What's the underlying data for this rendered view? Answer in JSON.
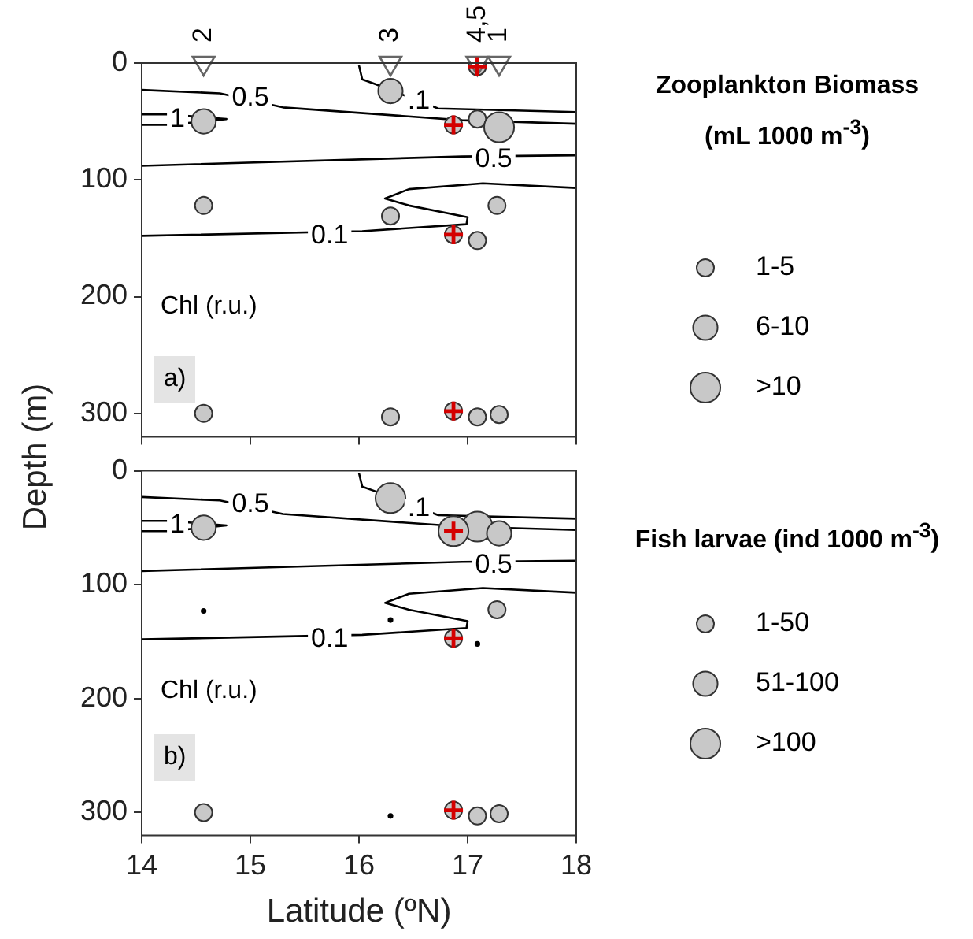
{
  "chart_data": [
    {
      "type": "bubble",
      "ylabel": "Depth (m)",
      "legend_title": "Zooplankton Biomass (mL 1000 m$^{-3}$)",
      "size_legend": [
        {
          "value": 1,
          "label": "1-5"
        },
        {
          "value": 2,
          "label": "6-10"
        },
        {
          "value": 3,
          "label": ">10"
        }
      ],
      "xlim": [
        14,
        18
      ],
      "xticks": [
        14,
        15,
        16,
        17,
        18
      ],
      "ylim": [
        320,
        0
      ],
      "yticks": [
        0,
        100,
        200,
        300
      ],
      "tick_labels": "y",
      "series": [
        {
          "type": "line",
          "color": "#000000",
          "x": [
            14,
            14.72,
            15.3,
            16.95,
            18
          ],
          "values": [
            23,
            26,
            38,
            49,
            52
          ]
        },
        {
          "type": "line",
          "color": "#000000",
          "x": [
            14,
            14.25,
            14.78,
            14.25,
            14
          ],
          "values": [
            44,
            44,
            48,
            53,
            53
          ]
        },
        {
          "type": "line",
          "color": "#000000",
          "x": [
            16,
            16.03,
            16.15,
            16.73,
            18
          ],
          "values": [
            2,
            14,
            18,
            39,
            42
          ]
        },
        {
          "type": "line",
          "color": "#000000",
          "x": [
            14,
            16.95,
            18
          ],
          "values": [
            88,
            80,
            79
          ]
        },
        {
          "type": "line",
          "color": "#000000",
          "x": [
            18,
            17.14,
            16.46,
            16.24,
            16.46,
            17,
            16.99,
            16.03,
            14
          ],
          "values": [
            107,
            103,
            108,
            116,
            122,
            132,
            138,
            144,
            148
          ]
        },
        {
          "type": "bubble",
          "color": "#c8c8c8",
          "x": [
            14.57,
            14.57,
            14.57,
            16.29,
            16.29,
            16.29,
            17.09,
            17.29,
            17.27,
            17.09,
            17.09,
            17.29
          ],
          "values": [
            50,
            122,
            300,
            24,
            131,
            303,
            48,
            55,
            122,
            152,
            303,
            301
          ],
          "sizes": [
            2,
            1,
            1,
            2,
            1,
            1,
            1,
            3,
            1,
            1,
            1,
            1
          ]
        },
        {
          "type": "bubble",
          "color": "#c8c8c8",
          "x": [
            17.09,
            16.87,
            16.87,
            16.87
          ],
          "values": [
            3,
            53,
            147,
            298
          ],
          "sizes": [
            1,
            1,
            1,
            1
          ]
        },
        {
          "type": "scatter",
          "color": "#666666",
          "marker": "triangle",
          "x": [
            14.57,
            16.29,
            17.09,
            17.29
          ],
          "values": [
            0,
            0,
            0,
            0
          ]
        },
        {
          "type": "scatter",
          "color": "#d40000",
          "marker": "cross",
          "x": [
            17.09,
            16.87,
            16.87,
            16.87
          ],
          "values": [
            3,
            53,
            147,
            298
          ]
        }
      ],
      "annotations": [
        {
          "text": "0.5",
          "x": 15.0,
          "y": 30
        },
        {
          "text": "1",
          "x": 14.33,
          "y": 48
        },
        {
          "text": ".1",
          "x": 16.55,
          "y": 33
        },
        {
          "text": "0.5",
          "x": 17.24,
          "y": 83
        },
        {
          "text": "0.1",
          "x": 15.73,
          "y": 148
        },
        {
          "text": "2",
          "x": 14.57,
          "y": 0
        },
        {
          "text": "3",
          "x": 16.29,
          "y": 0
        },
        {
          "text": "4,5",
          "x": 17.09,
          "y": 0
        },
        {
          "text": "1",
          "x": 17.29,
          "y": 0
        },
        "Chl (r.u.)",
        "a)"
      ]
    },
    {
      "type": "bubble",
      "xlabel": "Latitude (ºN)",
      "legend_title": "Fish larvae (ind 1000 m$^{-3}$)",
      "size_legend": [
        {
          "value": 1,
          "label": "1-50"
        },
        {
          "value": 2,
          "label": "51-100"
        },
        {
          "value": 3,
          "label": ">100"
        }
      ],
      "xlim": [
        14,
        18
      ],
      "xticks": [
        14,
        15,
        16,
        17,
        18
      ],
      "ylim": [
        320,
        0
      ],
      "yticks": [
        0,
        100,
        200,
        300
      ],
      "series": [
        {
          "type": "line",
          "color": "#000000",
          "x": [
            14,
            14.72,
            15.3,
            16.95,
            18
          ],
          "values": [
            23,
            26,
            38,
            49,
            52
          ]
        },
        {
          "type": "line",
          "color": "#000000",
          "x": [
            14,
            14.25,
            14.78,
            14.25,
            14
          ],
          "values": [
            44,
            44,
            48,
            53,
            53
          ]
        },
        {
          "type": "line",
          "color": "#000000",
          "x": [
            16,
            16.03,
            16.15,
            16.73,
            18
          ],
          "values": [
            2,
            14,
            18,
            39,
            42
          ]
        },
        {
          "type": "line",
          "color": "#000000",
          "x": [
            14,
            16.95,
            18
          ],
          "values": [
            88,
            80,
            79
          ]
        },
        {
          "type": "line",
          "color": "#000000",
          "x": [
            18,
            17.14,
            16.46,
            16.24,
            16.46,
            17,
            16.99,
            16.03,
            14
          ],
          "values": [
            107,
            103,
            108,
            116,
            122,
            132,
            138,
            144,
            148
          ]
        },
        {
          "type": "bubble",
          "color": "#c8c8c8",
          "x": [
            14.57,
            14.57,
            16.29,
            17.09,
            17.29,
            17.27,
            17.09,
            17.29
          ],
          "values": [
            50,
            300,
            24,
            49,
            55,
            122,
            303,
            301
          ],
          "sizes": [
            2,
            1,
            3,
            3,
            2,
            1,
            1,
            1
          ]
        },
        {
          "type": "scatter",
          "color": "#000000",
          "x": [
            14.57,
            16.29,
            16.29,
            17.09
          ],
          "values": [
            123,
            131,
            303,
            152
          ]
        },
        {
          "type": "bubble",
          "color": "#c8c8c8",
          "x": [
            16.87,
            16.87,
            16.87
          ],
          "values": [
            53,
            147,
            298
          ],
          "sizes": [
            3,
            1,
            1
          ]
        },
        {
          "type": "scatter",
          "color": "#d40000",
          "marker": "cross",
          "x": [
            16.87,
            16.87,
            16.87
          ],
          "values": [
            53,
            147,
            298
          ]
        }
      ],
      "annotations": [
        {
          "text": "0.5",
          "x": 15.0,
          "y": 30
        },
        {
          "text": "1",
          "x": 14.33,
          "y": 48
        },
        {
          "text": ".1",
          "x": 16.55,
          "y": 33
        },
        {
          "text": "0.5",
          "x": 17.24,
          "y": 83
        },
        {
          "text": "0.1",
          "x": 15.73,
          "y": 148
        },
        "Chl (r.u.)",
        "b)"
      ]
    }
  ]
}
